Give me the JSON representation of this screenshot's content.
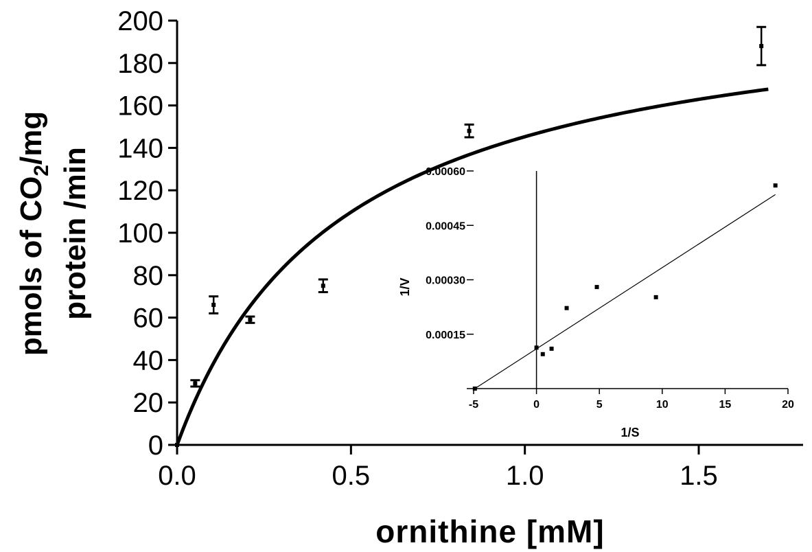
{
  "chart_data": [
    {
      "type": "scatter",
      "title": "",
      "xlabel": "ornithine [mM]",
      "ylabel": {
        "line1_before": "pmols of CO",
        "line1_sub": "2",
        "line1_after": "/mg",
        "line2": "protein /min"
      },
      "xlim": [
        0.0,
        1.8
      ],
      "ylim": [
        0,
        200
      ],
      "xticks": [
        "0.0",
        "0.5",
        "1.0",
        "1.5"
      ],
      "xtick_values": [
        0.0,
        0.5,
        1.0,
        1.5
      ],
      "yticks": [
        "0",
        "20",
        "40",
        "60",
        "80",
        "100",
        "120",
        "140",
        "160",
        "180",
        "200"
      ],
      "ytick_values": [
        0,
        20,
        40,
        60,
        80,
        100,
        120,
        140,
        160,
        180,
        200
      ],
      "points": [
        {
          "x": 0.0,
          "y": 0,
          "err": 0
        },
        {
          "x": 0.052,
          "y": 29,
          "err": 1.5
        },
        {
          "x": 0.105,
          "y": 66,
          "err": 4
        },
        {
          "x": 0.21,
          "y": 59,
          "err": 1.5
        },
        {
          "x": 0.42,
          "y": 75,
          "err": 3
        },
        {
          "x": 0.84,
          "y": 148,
          "err": 3
        },
        {
          "x": 1.68,
          "y": 188,
          "err": 9
        }
      ],
      "fit": {
        "type": "michaelis-menten",
        "vmax": 215,
        "km": 0.48,
        "x0": 0.0,
        "x_end": 1.7
      },
      "grid": false
    },
    {
      "type": "scatter",
      "title": "",
      "xlabel": "1/S",
      "ylabel": "1/V",
      "xlim": [
        -5,
        20
      ],
      "ylim": [
        0.0,
        0.0006
      ],
      "xticks": [
        "-5",
        "0",
        "5",
        "10",
        "15",
        "20"
      ],
      "xtick_values": [
        -5,
        0,
        5,
        10,
        15,
        20
      ],
      "yticks": [
        "0.00015",
        "0.00030",
        "0.00045",
        "0.00060"
      ],
      "ytick_values": [
        0.00015,
        0.0003,
        0.00045,
        0.0006
      ],
      "points": [
        {
          "x": -4.9,
          "y": 0.0
        },
        {
          "x": 0.0,
          "y": 0.000113
        },
        {
          "x": 0.5,
          "y": 9.5e-05
        },
        {
          "x": 1.2,
          "y": 0.00011
        },
        {
          "x": 2.4,
          "y": 0.000222
        },
        {
          "x": 4.8,
          "y": 0.00028
        },
        {
          "x": 9.5,
          "y": 0.000252
        },
        {
          "x": 19.0,
          "y": 0.00056
        }
      ],
      "fit_line": {
        "x": [
          -4.9,
          19.0
        ],
        "y": [
          0.0,
          0.000535
        ]
      },
      "grid": false
    }
  ]
}
